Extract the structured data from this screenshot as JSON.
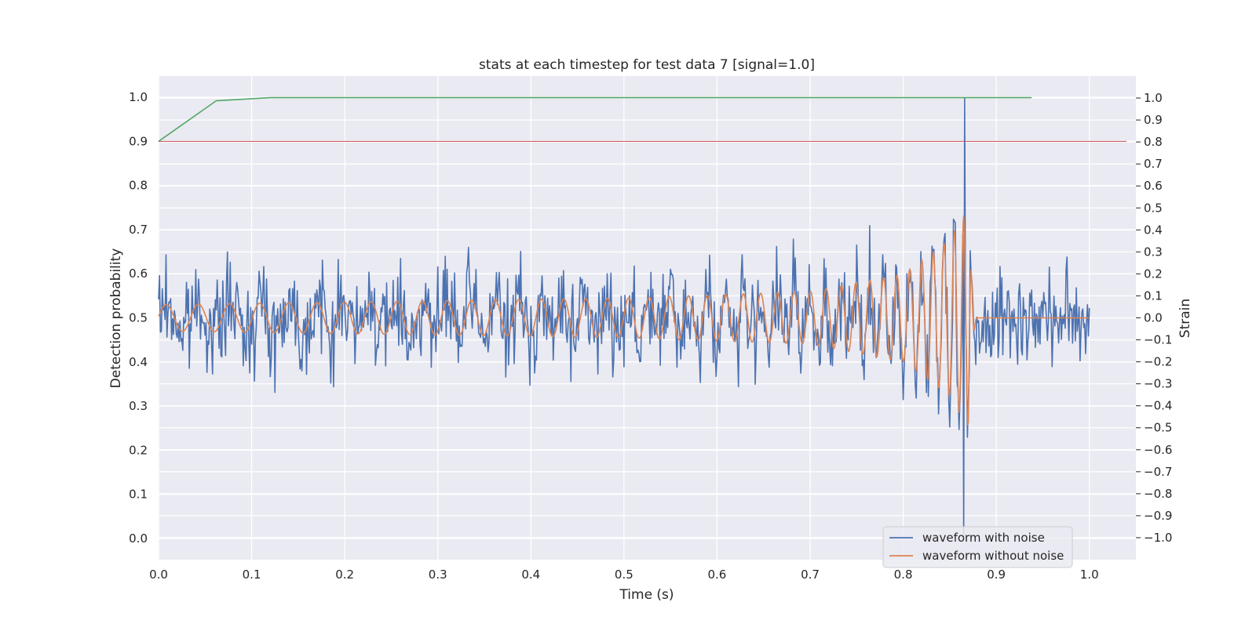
{
  "chart_data": {
    "type": "line",
    "title": "stats at each timestep for test data 7 [signal=1.0]",
    "xlabel": "Time (s)",
    "ylabel_left": "Detection probability",
    "ylabel_right": "Strain",
    "xlim": [
      0.0,
      1.05
    ],
    "ylim_left": [
      -0.048,
      1.048
    ],
    "ylim_right": [
      -1.1,
      1.1
    ],
    "x_ticks": [
      "0.0",
      "0.1",
      "0.2",
      "0.3",
      "0.4",
      "0.5",
      "0.6",
      "0.7",
      "0.8",
      "0.9",
      "1.0"
    ],
    "y_ticks_left": [
      "0.0",
      "0.1",
      "0.2",
      "0.3",
      "0.4",
      "0.5",
      "0.6",
      "0.7",
      "0.8",
      "0.9",
      "1.0"
    ],
    "y_ticks_right": [
      "−1.0",
      "−0.9",
      "−0.8",
      "−0.7",
      "−0.6",
      "−0.5",
      "−0.4",
      "−0.3",
      "−0.2",
      "−0.1",
      "0.0",
      "0.1",
      "0.2",
      "0.3",
      "0.4",
      "0.5",
      "0.6",
      "0.7",
      "0.8",
      "0.9",
      "1.0"
    ],
    "grid": true,
    "legend_position": "lower-right",
    "colors": {
      "noisy": "#4c72b0",
      "clean": "#dd8452",
      "probability": "#55a868",
      "threshold": "#c44e52",
      "background": "#eaeaf2",
      "grid": "#ffffff"
    },
    "series": [
      {
        "name": "waveform with noise",
        "axis": "right",
        "color": "#4c72b0",
        "x_range": [
          0.0,
          1.0
        ],
        "noise_amplitude": 0.2,
        "spike": {
          "x": 0.866,
          "y_max": 1.0,
          "y_min": -1.0
        }
      },
      {
        "name": "waveform without noise",
        "axis": "right",
        "color": "#dd8452",
        "x_range": [
          0.0,
          1.0
        ],
        "chirp_points": [
          {
            "x": 0.0,
            "amp": 0.06,
            "freq": 28
          },
          {
            "x": 0.5,
            "amp": 0.09,
            "freq": 44
          },
          {
            "x": 0.7,
            "amp": 0.12,
            "freq": 58
          },
          {
            "x": 0.8,
            "amp": 0.2,
            "freq": 72
          },
          {
            "x": 0.85,
            "amp": 0.36,
            "freq": 90
          },
          {
            "x": 0.87,
            "amp": 0.5,
            "freq": 110
          }
        ],
        "merger_x": 0.87,
        "ringdown_end_x": 0.88
      },
      {
        "axis": "left",
        "color": "#55a868",
        "points": [
          [
            0.0,
            0.9
          ],
          [
            0.062,
            0.992
          ],
          [
            0.12,
            0.999
          ],
          [
            0.938,
            0.999
          ]
        ]
      },
      {
        "axis": "left",
        "color": "#c44e52",
        "points": [
          [
            0.0,
            0.9
          ],
          [
            1.04,
            0.9
          ]
        ]
      }
    ]
  }
}
